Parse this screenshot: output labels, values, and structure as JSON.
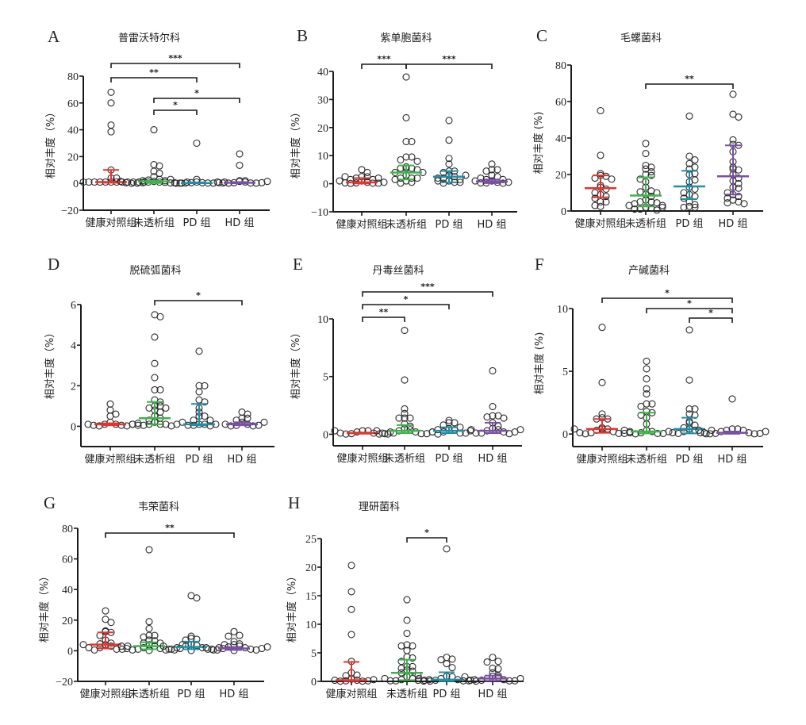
{
  "colors": {
    "groups": [
      "#e8322c",
      "#3bb54a",
      "#1f8fa6",
      "#7b4fa8"
    ],
    "point_stroke": "#2a2a2a",
    "axis": "#1a1a1a"
  },
  "chart_data": [
    {
      "panel": "A",
      "type": "scatter",
      "title": "普雷沃特尔科",
      "ylabel": "相对丰度（%）",
      "ylim": [
        -20,
        80
      ],
      "yticks": [
        -20,
        0,
        20,
        40,
        60,
        80
      ],
      "categories": [
        "健康对照组",
        "未透析组",
        "PD 组",
        "HD 组"
      ],
      "series": [
        {
          "name": "健康对照组",
          "median": 1,
          "q1": 0.5,
          "q3": 10,
          "values": [
            68,
            60,
            43.5,
            38.5,
            10,
            4,
            4,
            1,
            1,
            1,
            1,
            1,
            1,
            1,
            1,
            1,
            1,
            1,
            1
          ]
        },
        {
          "name": "未透析组",
          "median": 1.5,
          "q1": 0.3,
          "q3": 2,
          "values": [
            40,
            14,
            13,
            9,
            7.5,
            5,
            3,
            2.5,
            2,
            1.5,
            1,
            1,
            0.8,
            0.5,
            0.3,
            0.2,
            0.1,
            0.1,
            0.2,
            0.5,
            1,
            1.5,
            2,
            3
          ]
        },
        {
          "name": "PD 组",
          "median": 0.3,
          "q1": 0.1,
          "q3": 0.8,
          "values": [
            30,
            3,
            1,
            0.5,
            0.5,
            0.3,
            0.3,
            0.2,
            0.2,
            0.5,
            0.5,
            1
          ]
        },
        {
          "name": "HD 组",
          "median": 0.5,
          "q1": 0.1,
          "q3": 1,
          "values": [
            22,
            13.5,
            2,
            1.5,
            1,
            0.5,
            0.3,
            0.2,
            0.2,
            0.3,
            0.5,
            1,
            1.5,
            2
          ]
        }
      ],
      "brackets": [
        {
          "from": 0,
          "to": 3,
          "label": "***"
        },
        {
          "from": 0,
          "to": 2,
          "label": "**"
        },
        {
          "from": 1,
          "to": 3,
          "label": "*"
        },
        {
          "from": 1,
          "to": 2,
          "label": "*"
        }
      ]
    },
    {
      "panel": "B",
      "type": "scatter",
      "title": "紫单胞菌科",
      "ylabel": "相对丰度（%）",
      "ylim": [
        -10,
        40
      ],
      "yticks": [
        -10,
        0,
        10,
        20,
        30,
        40
      ],
      "categories": [
        "健康对照组",
        "未透析组",
        "PD 组",
        "HD 组"
      ],
      "series": [
        {
          "name": "健康对照组",
          "median": 0.5,
          "q1": 0.1,
          "q3": 2,
          "values": [
            5,
            4,
            2.5,
            2.5,
            2,
            1.5,
            1,
            0.5,
            0.3,
            0.2,
            0.1,
            0.2,
            0.3,
            0.5,
            1,
            1.5,
            2,
            2.5
          ]
        },
        {
          "name": "未透析组",
          "median": 4,
          "q1": 1.5,
          "q3": 6.5,
          "values": [
            38,
            23.5,
            15,
            15,
            9.5,
            9.5,
            8.5,
            8,
            6,
            5.5,
            5.5,
            5.5,
            5,
            4,
            4,
            3,
            2,
            2,
            2,
            1.5,
            1,
            0.5,
            0.2
          ]
        },
        {
          "name": "PD 组",
          "median": 2.5,
          "q1": 0.5,
          "q3": 4.5,
          "values": [
            22.5,
            15.5,
            9,
            7,
            4.5,
            4.5,
            4,
            3,
            2.5,
            2,
            1.5,
            1,
            0.5,
            0.2,
            0.5,
            1,
            2,
            3
          ]
        },
        {
          "name": "HD 组",
          "median": 0.8,
          "q1": 0.2,
          "q3": 1.5,
          "values": [
            7,
            5,
            5,
            4.5,
            3,
            2.5,
            1.5,
            1,
            0.5,
            0.3,
            0.2,
            0.3,
            0.5,
            1,
            1.5,
            2
          ]
        }
      ],
      "brackets": [
        {
          "from": 0,
          "to": 1,
          "label": "***"
        },
        {
          "from": 1,
          "to": 3,
          "label": "***"
        }
      ]
    },
    {
      "panel": "C",
      "type": "scatter",
      "title": "毛螺菌科",
      "ylabel": "相对丰度 (%)",
      "ylim": [
        0,
        80
      ],
      "yticks": [
        0,
        20,
        40,
        60,
        80
      ],
      "categories": [
        "健康对照组",
        "未透析组",
        "PD 组",
        "HD 组"
      ],
      "series": [
        {
          "name": "健康对照组",
          "median": 12.5,
          "q1": 7.5,
          "q3": 19.5,
          "values": [
            55,
            30.5,
            20.5,
            19.5,
            19,
            18,
            17.5,
            14,
            13,
            12,
            10,
            9,
            8,
            7,
            5,
            5,
            3,
            2.5
          ]
        },
        {
          "name": "未透析组",
          "median": 8.5,
          "q1": 2.5,
          "q3": 18.5,
          "values": [
            37,
            31.5,
            25,
            24,
            23,
            21.5,
            20,
            19.5,
            17.5,
            16,
            13,
            11,
            10.5,
            10,
            9,
            8,
            6,
            5,
            5,
            4.5,
            4,
            3,
            2,
            1.5,
            1,
            0.5,
            1,
            2,
            3
          ]
        },
        {
          "name": "PD 组",
          "median": 13.5,
          "q1": 6.5,
          "q3": 22,
          "values": [
            52,
            30,
            28,
            26,
            24,
            23,
            20.5,
            20,
            17,
            16,
            13,
            12,
            10,
            9,
            8,
            7,
            5,
            3.5,
            2.5,
            2,
            2
          ]
        },
        {
          "name": "HD 组",
          "median": 19,
          "q1": 9,
          "q3": 36,
          "values": [
            64,
            53,
            51.5,
            39,
            36.5,
            36,
            32.5,
            27,
            24,
            23,
            22.5,
            20,
            18,
            16.5,
            15,
            13,
            12.5,
            10,
            9,
            8,
            7,
            6,
            5,
            4.5,
            4
          ]
        }
      ],
      "brackets": [
        {
          "from": 1,
          "to": 3,
          "label": "**"
        }
      ]
    },
    {
      "panel": "D",
      "type": "scatter",
      "title": "脱硫弧菌科",
      "ylabel": "相对丰度（%）",
      "ylim": [
        -1,
        6
      ],
      "yticks": [
        0,
        2,
        4,
        6
      ],
      "categories": [
        "健康对照组",
        "未透析组",
        "PD 组",
        "HD 组"
      ],
      "series": [
        {
          "name": "健康对照组",
          "median": 0.1,
          "q1": 0.05,
          "q3": 0.15,
          "values": [
            1.1,
            0.8,
            0.6,
            0.5,
            0.2,
            0.1,
            0.1,
            0.05,
            0.02,
            0.02,
            0.05,
            0.1,
            0.1,
            0.15
          ]
        },
        {
          "name": "未透析组",
          "median": 0.4,
          "q1": 0.1,
          "q3": 1.2,
          "values": [
            5.5,
            5.4,
            4.4,
            3.1,
            2.4,
            1.8,
            1.8,
            1.3,
            1.2,
            1.0,
            1.0,
            0.9,
            0.9,
            0.8,
            0.7,
            0.5,
            0.4,
            0.3,
            0.2,
            0.1,
            0.1,
            0.1,
            0.05,
            0.02,
            0.05,
            0.1,
            0.1,
            0.2
          ]
        },
        {
          "name": "PD 组",
          "median": 0.1,
          "q1": 0.05,
          "q3": 1.1,
          "values": [
            3.7,
            2.0,
            2.0,
            1.7,
            1.3,
            1.2,
            0.9,
            0.7,
            0.5,
            0.5,
            0.3,
            0.3,
            0.1,
            0.1,
            0.05,
            0.02,
            0.05,
            0.1
          ]
        },
        {
          "name": "HD 组",
          "median": 0.1,
          "q1": 0.05,
          "q3": 0.2,
          "values": [
            0.7,
            0.6,
            0.4,
            0.4,
            0.3,
            0.2,
            0.1,
            0.05,
            0.02,
            0.02,
            0.05,
            0.1,
            0.2
          ]
        }
      ],
      "brackets": [
        {
          "from": 1,
          "to": 3,
          "label": "*"
        }
      ]
    },
    {
      "panel": "E",
      "type": "scatter",
      "title": "丹毒丝菌科",
      "ylabel": "相对丰度（%）",
      "ylim": [
        -1,
        10
      ],
      "yticks": [
        0,
        5,
        10
      ],
      "categories": [
        "健康对照组",
        "未透析组",
        "PD 组",
        "HD 组"
      ],
      "series": [
        {
          "name": "健康对照组",
          "median": 0.1,
          "q1": 0.05,
          "q3": 0.15,
          "values": [
            0.3,
            0.3,
            0.2,
            0.1,
            0.05,
            0.02,
            0.02,
            0.05,
            0.1,
            0.2,
            0.3
          ]
        },
        {
          "name": "未透析组",
          "median": 0.3,
          "q1": 0.1,
          "q3": 0.8,
          "values": [
            9.0,
            4.7,
            2.2,
            1.8,
            1.4,
            1.4,
            1.4,
            0.9,
            0.7,
            0.5,
            0.4,
            0.3,
            0.2,
            0.1,
            0.05,
            0.02,
            0.05,
            0.1,
            0.2,
            0.3,
            0.4
          ]
        },
        {
          "name": "PD 组",
          "median": 0.3,
          "q1": 0.1,
          "q3": 0.6,
          "values": [
            1.2,
            1.0,
            1.0,
            0.8,
            0.6,
            0.5,
            0.4,
            0.2,
            0.1,
            0.02,
            0.1,
            0.2,
            0.4
          ]
        },
        {
          "name": "HD 组",
          "median": 0.3,
          "q1": 0.1,
          "q3": 1.0,
          "values": [
            5.5,
            2.4,
            1.6,
            1.6,
            1.5,
            1.4,
            1.0,
            0.7,
            0.5,
            0.4,
            0.3,
            0.2,
            0.1,
            0.05,
            0.1,
            0.2,
            0.3,
            0.4
          ]
        }
      ],
      "brackets": [
        {
          "from": 0,
          "to": 3,
          "label": "***"
        },
        {
          "from": 0,
          "to": 2,
          "label": "*"
        },
        {
          "from": 0,
          "to": 1,
          "label": "**"
        }
      ]
    },
    {
      "panel": "F",
      "type": "scatter",
      "title": "产碱菌科",
      "ylabel": "相对丰度 (%)",
      "ylim": [
        -1,
        10
      ],
      "yticks": [
        0,
        5,
        10
      ],
      "categories": [
        "健康对照组",
        "未透析组",
        "PD 组",
        "HD 组"
      ],
      "series": [
        {
          "name": "健康对照组",
          "median": 0.4,
          "q1": 0.1,
          "q3": 1.2,
          "values": [
            8.5,
            4.1,
            1.6,
            1.3,
            1.2,
            1.2,
            0.5,
            0.4,
            0.4,
            0.3,
            0.2,
            0.1,
            0.05,
            0.02,
            0.05,
            0.1,
            0.2,
            0.4
          ]
        },
        {
          "name": "未透析组",
          "median": 0.2,
          "q1": 0.05,
          "q3": 1.7,
          "values": [
            5.8,
            5.2,
            4.4,
            3.6,
            3.2,
            2.4,
            2.4,
            2.2,
            1.8,
            1.7,
            1.5,
            1.3,
            0.8,
            0.3,
            0.2,
            0.1,
            0.05,
            0.02,
            0.05,
            0.1,
            0.2,
            0.3
          ]
        },
        {
          "name": "PD 组",
          "median": 0.4,
          "q1": 0.05,
          "q3": 1.3,
          "values": [
            8.3,
            4.3,
            2.0,
            2.0,
            1.6,
            1.5,
            1.0,
            0.9,
            0.7,
            0.5,
            0.4,
            0.3,
            0.2,
            0.1,
            0.05,
            0.02,
            0.1,
            0.3
          ]
        },
        {
          "name": "HD 组",
          "median": 0.1,
          "q1": 0.02,
          "q3": 0.2,
          "values": [
            2.8,
            0.4,
            0.4,
            0.3,
            0.3,
            0.2,
            0.1,
            0.05,
            0.02,
            0.02,
            0.05,
            0.1,
            0.2,
            0.3
          ]
        }
      ],
      "brackets": [
        {
          "from": 0,
          "to": 3,
          "label": "*"
        },
        {
          "from": 1,
          "to": 3,
          "label": "*"
        },
        {
          "from": 2,
          "to": 3,
          "label": "*"
        }
      ]
    },
    {
      "panel": "G",
      "type": "scatter",
      "title": "韦荣菌科",
      "ylabel": "相对丰度（%）",
      "ylim": [
        -20,
        80
      ],
      "yticks": [
        -20,
        0,
        20,
        40,
        60,
        80
      ],
      "categories": [
        "健康对照组",
        "未透析组",
        "PD 组",
        "HD 组"
      ],
      "series": [
        {
          "name": "健康对照组",
          "median": 4,
          "q1": 1.5,
          "q3": 12,
          "values": [
            26,
            20.5,
            18.5,
            13,
            12.5,
            12,
            10,
            7,
            5,
            4.5,
            4,
            3,
            2,
            1,
            0.5,
            1,
            2,
            3,
            4
          ]
        },
        {
          "name": "未透析组",
          "median": 3,
          "q1": 1,
          "q3": 5.5,
          "values": [
            66,
            19,
            14.5,
            10,
            10,
            9,
            7,
            6.5,
            5,
            4,
            3,
            2,
            1.5,
            1,
            0.5,
            0.2,
            0.5,
            1,
            1.5,
            2,
            3,
            4,
            5
          ]
        },
        {
          "name": "PD 组",
          "median": 2.5,
          "q1": 1,
          "q3": 6,
          "values": [
            36,
            34.5,
            9.5,
            8,
            7.5,
            7,
            4,
            3.5,
            3,
            2,
            1.5,
            1,
            0.5,
            0.2,
            0.5,
            1,
            2,
            3,
            4
          ]
        },
        {
          "name": "HD 组",
          "median": 1.5,
          "q1": 0.5,
          "q3": 2.5,
          "values": [
            12.5,
            10,
            9.5,
            6,
            4.5,
            4,
            3,
            2.5,
            2,
            1.5,
            1,
            0.5,
            0.2,
            0.5,
            1,
            1.5,
            2,
            2.5
          ]
        }
      ],
      "brackets": [
        {
          "from": 0,
          "to": 3,
          "label": "**"
        }
      ]
    },
    {
      "panel": "H",
      "type": "scatter",
      "title": "理研菌科",
      "ylabel": "相对丰度（%）",
      "ylim": [
        0,
        25
      ],
      "yticks": [
        0,
        5,
        10,
        15,
        20,
        25
      ],
      "categories": [
        "健康对照组",
        "未透析组",
        "PD 组",
        "HD 组"
      ],
      "series": [
        {
          "name": "健康对照组",
          "median": 0.2,
          "q1": 0.05,
          "q3": 3.4,
          "values": [
            20.3,
            15.7,
            12.6,
            8.2,
            3.5,
            1.5,
            1.1,
            1.0,
            0.4,
            0.2,
            0.1,
            0.05,
            0.05,
            0.1,
            0.2,
            0.3
          ]
        },
        {
          "name": "未透析组",
          "median": 1.5,
          "q1": 0.2,
          "q3": 3.8,
          "values": [
            14.3,
            10.7,
            8.4,
            6.4,
            6.2,
            6.2,
            5.4,
            4.3,
            4.1,
            3.5,
            2.6,
            2.6,
            2.3,
            2.0,
            1.8,
            1.5,
            1.0,
            0.8,
            0.5,
            0.3,
            0.2,
            0.1,
            0.05,
            0.1,
            0.3,
            0.5
          ]
        },
        {
          "name": "PD 组",
          "median": 0.3,
          "q1": 0.05,
          "q3": 1.6,
          "values": [
            23.2,
            4.2,
            3.9,
            3.8,
            3.1,
            2.4,
            0.9,
            0.8,
            0.5,
            0.3,
            0.2,
            0.1,
            0.05,
            0.1,
            0.2,
            0.3,
            0.5
          ]
        },
        {
          "name": "HD 组",
          "median": 0.5,
          "q1": 0.1,
          "q3": 1.0,
          "values": [
            4.2,
            3.5,
            3.4,
            2.3,
            2.2,
            1.5,
            1.0,
            0.9,
            0.7,
            0.5,
            0.3,
            0.2,
            0.1,
            0.05,
            0.1,
            0.2,
            0.5,
            0.8
          ]
        }
      ],
      "brackets": [
        {
          "from": 1,
          "to": 2,
          "label": "*"
        }
      ]
    }
  ]
}
